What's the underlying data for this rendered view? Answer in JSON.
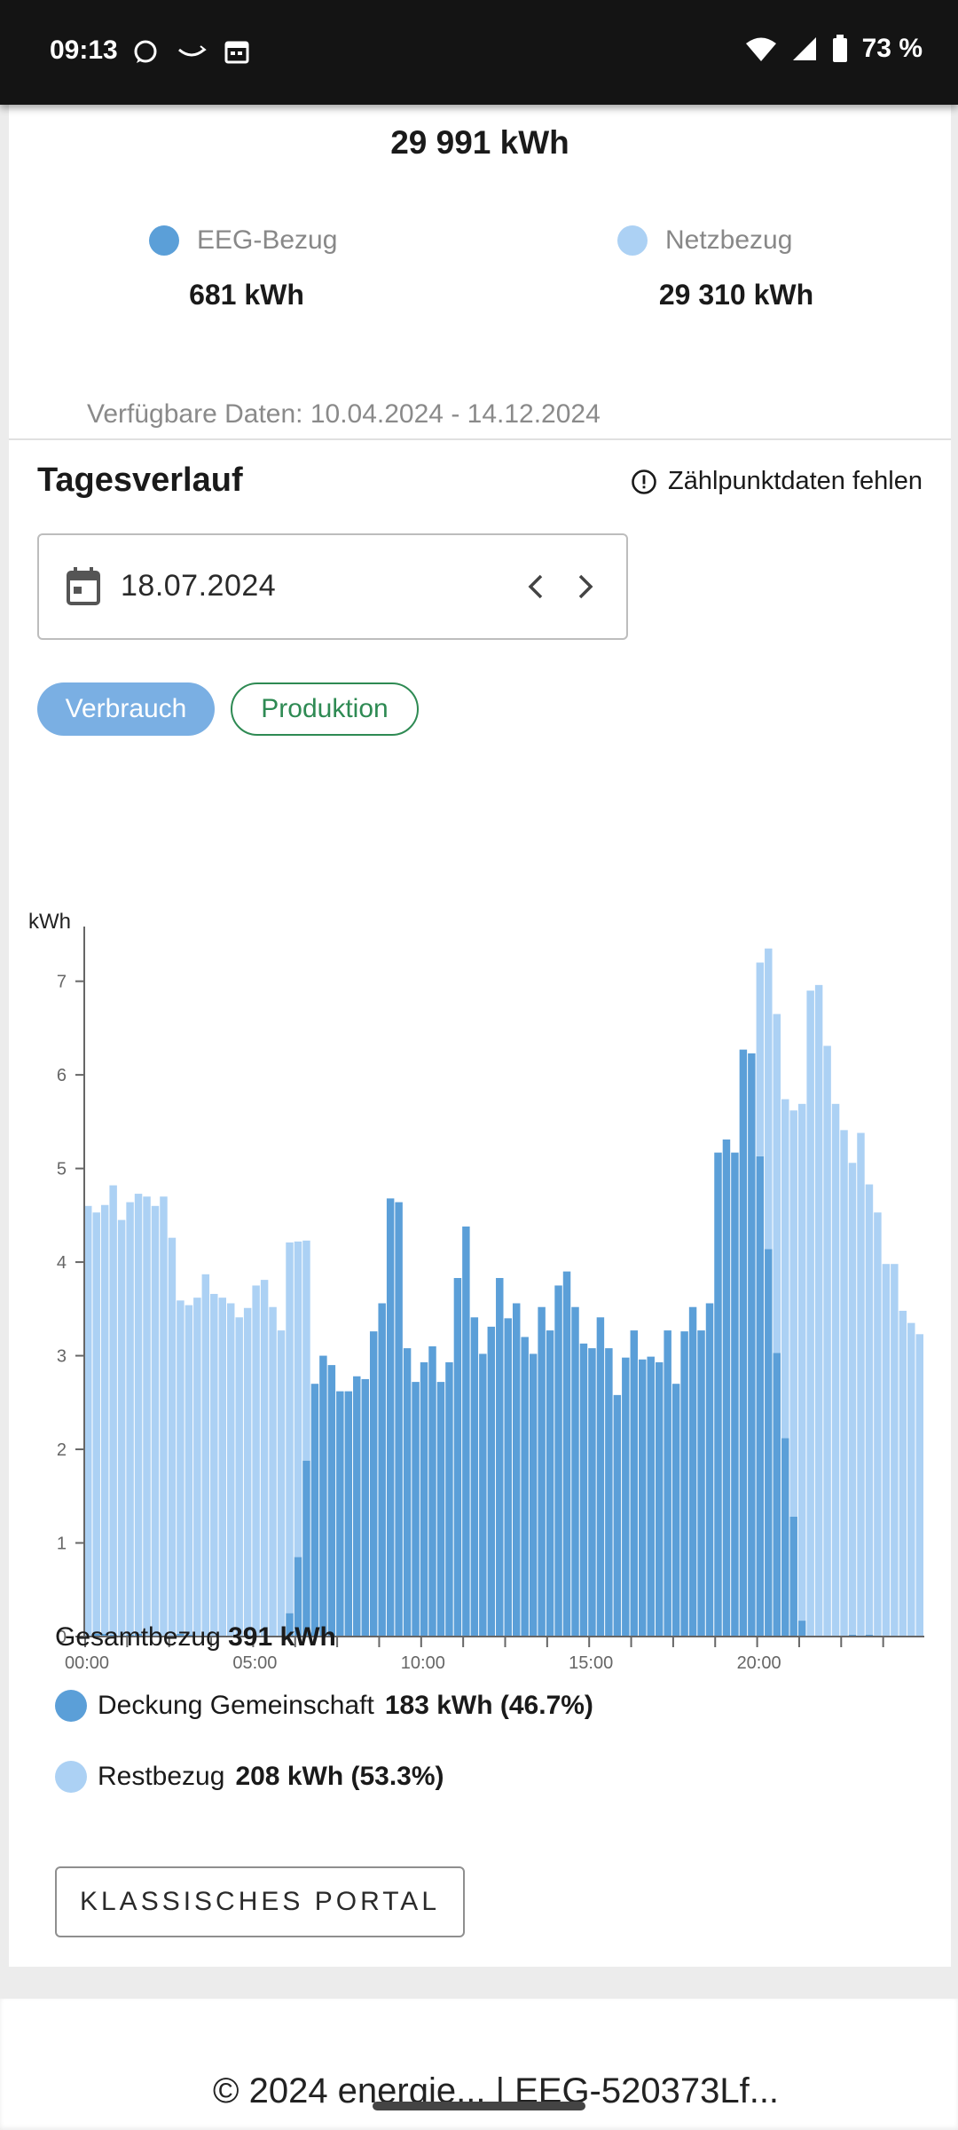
{
  "status_bar": {
    "time": "09:13",
    "battery": "73 %"
  },
  "summary_top": {
    "total": "29 991 kWh",
    "eeg_label": "EEG-Bezug",
    "eeg_value": "681 kWh",
    "net_label": "Netzbezug",
    "net_value": "29 310 kWh",
    "available": "Verfügbare Daten: 10.04.2024 - 14.12.2024"
  },
  "section": {
    "title": "Tagesverlauf",
    "warning": "Zählpunktdaten fehlen"
  },
  "date_picker": {
    "value": "18.07.2024"
  },
  "tabs": {
    "consumption": "Verbrauch",
    "production": "Produktion"
  },
  "colors": {
    "community": "#5b9fd8",
    "rest": "#acd1f4",
    "chip_active": "#7aafe3",
    "chip_outline": "#2e8a53"
  },
  "chart_data": {
    "type": "bar",
    "stacked": true,
    "ylabel": "kWh",
    "ylim": [
      0,
      7.3
    ],
    "yticks": [
      0,
      1,
      2,
      3,
      4,
      5,
      6,
      7
    ],
    "x_tick_labels": [
      "00:00",
      "05:00",
      "10:00",
      "15:00",
      "20:00"
    ],
    "x_tick_label_positions": [
      0,
      20,
      40,
      60,
      80
    ],
    "categories_interval": "15 min",
    "series": [
      {
        "name": "Deckung Gemeinschaft",
        "color": "#5b9fd8",
        "values": [
          0,
          0.03,
          0.03,
          0.02,
          0,
          0.02,
          0.03,
          0,
          0,
          0,
          0,
          0.03,
          0.02,
          0,
          0,
          0,
          0,
          0,
          0,
          0,
          0,
          0,
          0,
          0,
          0.25,
          0.85,
          1.88,
          2.7,
          3,
          2.9,
          2.62,
          2.62,
          2.78,
          2.75,
          3.26,
          3.56,
          4.68,
          4.64,
          3.08,
          2.72,
          2.93,
          3.1,
          2.72,
          2.93,
          3.83,
          4.38,
          3.41,
          3.02,
          3.31,
          3.83,
          3.4,
          3.56,
          3.2,
          3.02,
          3.52,
          3.27,
          3.75,
          3.9,
          3.52,
          3.13,
          3.08,
          3.41,
          3.08,
          2.58,
          2.98,
          3.27,
          2.96,
          2.99,
          2.93,
          3.27,
          2.7,
          3.26,
          3.52,
          3.27,
          3.56,
          5.17,
          5.31,
          5.17,
          6.27,
          6.23,
          5.13,
          4.14,
          3.03,
          2.12,
          1.28,
          0.17,
          0,
          0,
          0,
          0,
          0,
          0.02,
          0,
          0.02,
          0,
          0,
          0,
          0,
          0,
          0
        ]
      },
      {
        "name": "Restbezug",
        "color": "#acd1f4",
        "values": [
          4.6,
          4.5,
          4.58,
          4.8,
          4.45,
          4.62,
          4.7,
          4.7,
          4.6,
          4.7,
          4.26,
          3.56,
          3.52,
          3.62,
          3.87,
          3.66,
          3.62,
          3.56,
          3.41,
          3.51,
          3.75,
          3.81,
          3.52,
          3.27,
          3.96,
          3.37,
          2.35,
          0,
          0,
          0,
          0,
          0,
          0,
          0,
          0,
          0,
          0,
          0,
          0,
          0,
          0,
          0,
          0,
          0,
          0,
          0,
          0,
          0,
          0,
          0,
          0,
          0,
          0,
          0,
          0,
          0,
          0,
          0,
          0,
          0,
          0,
          0,
          0,
          0,
          0,
          0,
          0,
          0,
          0,
          0,
          0,
          0,
          0,
          0,
          0,
          0,
          0,
          0,
          0,
          0,
          2.07,
          3.21,
          3.62,
          3.62,
          4.34,
          5.52,
          6.9,
          6.96,
          6.31,
          5.69,
          5.41,
          5.04,
          5.38,
          4.81,
          4.53,
          3.98,
          3.98,
          3.48,
          3.35,
          3.23
        ]
      }
    ]
  },
  "summary_bottom": {
    "total_label": "Gesamtbezug",
    "total_value": "391 kWh",
    "community_label": "Deckung Gemeinschaft",
    "community_value": "183 kWh (46.7%)",
    "rest_label": "Restbezug",
    "rest_value": "208 kWh (53.3%)"
  },
  "portal_button": "KLASSISCHES PORTAL",
  "footer": {
    "clipped_text": "© 2024 energie... | EEG-520373Lf..."
  }
}
